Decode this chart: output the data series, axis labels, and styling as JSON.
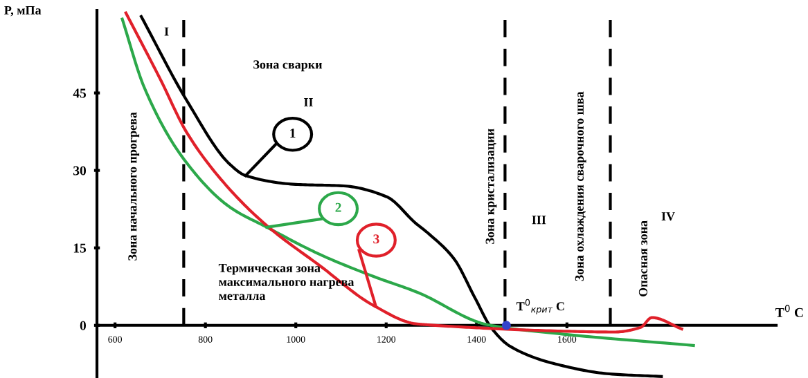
{
  "chart_data": {
    "type": "line",
    "xlabel": "T$^{0}$ C",
    "ylabel": "P, мПа",
    "xlim": [
      560,
      2063
    ],
    "ylim": [
      -10.2,
      61
    ],
    "xticks": [
      600,
      800,
      1000,
      1200,
      1400,
      1600
    ],
    "yticks": [
      0,
      15,
      30,
      45
    ],
    "series": [
      {
        "name": "1",
        "color": "#000000",
        "x": [
          658,
          759,
          854,
          889,
          1000,
          1106,
          1201,
          1265,
          1292,
          1350,
          1396,
          1432,
          1475,
          1580,
          1694,
          1809
        ],
        "values": [
          59.8,
          43.5,
          31.2,
          29,
          27.3,
          27,
          24.9,
          19.8,
          17.9,
          12.9,
          5.4,
          -0.4,
          -4.1,
          -7.6,
          -9.4,
          -9.9
        ]
      },
      {
        "name": "2",
        "color": "#2ca84a",
        "x": [
          616,
          665,
          753,
          854,
          936,
          1054,
          1171,
          1269,
          1425,
          1580,
          1880
        ],
        "values": [
          59.3,
          46,
          32.1,
          22.9,
          19,
          13.7,
          9.5,
          6.4,
          0.1,
          -1.6,
          -3.9
        ]
      },
      {
        "name": "3",
        "color": "#e0202a",
        "x": [
          624,
          700,
          759,
          847,
          936,
          1054,
          1171,
          1265,
          1292,
          1406,
          1580,
          1705,
          1763,
          1788,
          1854
        ],
        "values": [
          60.5,
          47.7,
          37.3,
          27,
          19.3,
          11.5,
          3.9,
          0.3,
          0.1,
          -0.5,
          -1.1,
          -1.3,
          -0.4,
          1.5,
          -0.7
        ]
      },
      {
        "type": "scatter",
        "color": "#3344cc",
        "marker": "circle",
        "x": [
          1466
        ],
        "values": [
          0
        ]
      }
    ],
    "ref_lines": [
      {
        "axis": "x",
        "value": 752,
        "color": "#000000",
        "line_style": "dashed"
      },
      {
        "axis": "x",
        "value": 1463,
        "color": "#000000",
        "line_style": "dashed"
      },
      {
        "axis": "x",
        "value": 1696,
        "color": "#000000",
        "line_style": "dashed"
      }
    ],
    "annotations": [
      "I",
      "II",
      "III",
      "IV",
      "Зона сварки",
      "Зона начального прогрева",
      "Зона кристализации",
      "Зона охлаждения сварочного шва",
      "Опасная зона",
      "Термическая зона\nмаксимального нагрева\nметалла",
      "T$^{0}$$_{крит}$ C"
    ]
  }
}
